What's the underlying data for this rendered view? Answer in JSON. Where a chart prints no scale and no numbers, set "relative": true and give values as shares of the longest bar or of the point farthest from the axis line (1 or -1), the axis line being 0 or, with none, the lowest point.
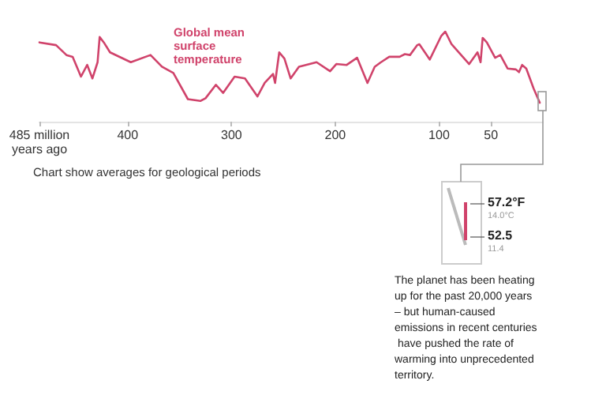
{
  "chart_data": {
    "type": "line",
    "relative": true,
    "x": [
      485,
      469,
      459,
      453,
      445,
      439,
      434,
      429,
      427,
      423,
      417,
      397,
      378,
      367,
      356,
      342,
      330,
      325,
      315,
      308,
      297,
      287,
      275,
      268,
      260,
      258,
      254,
      249,
      243,
      235,
      218,
      205,
      199,
      189,
      179,
      169,
      162,
      156,
      148,
      138,
      133,
      128,
      121,
      119,
      109,
      98,
      94,
      88,
      71,
      63,
      60,
      58,
      54,
      46,
      41,
      34,
      26,
      23,
      20,
      16,
      9,
      3
    ],
    "series": [
      {
        "name": "Global mean surface temperature",
        "color": "#d0436b",
        "values": [
          0.88,
          0.85,
          0.74,
          0.72,
          0.5,
          0.63,
          0.48,
          0.66,
          0.94,
          0.88,
          0.77,
          0.66,
          0.74,
          0.61,
          0.54,
          0.25,
          0.23,
          0.26,
          0.41,
          0.32,
          0.5,
          0.48,
          0.28,
          0.43,
          0.53,
          0.43,
          0.77,
          0.7,
          0.48,
          0.61,
          0.66,
          0.56,
          0.64,
          0.63,
          0.71,
          0.43,
          0.61,
          0.66,
          0.72,
          0.72,
          0.75,
          0.74,
          0.85,
          0.86,
          0.69,
          0.95,
          1.0,
          0.86,
          0.64,
          0.77,
          0.66,
          0.93,
          0.88,
          0.71,
          0.74,
          0.59,
          0.58,
          0.55,
          0.63,
          0.59,
          0.37,
          0.21
        ]
      }
    ],
    "xlim": [
      485,
      0
    ],
    "xticks": [
      {
        "value": 485,
        "label": "485 million years ago"
      },
      400,
      300,
      200,
      100,
      50
    ],
    "legend": false,
    "marker": "none",
    "line_style": "solid",
    "annotations": [
      "Chart show averages for geological periods",
      "57.2°F",
      "14.0°C",
      "52.5",
      "11.4",
      "The planet has been heating up for the past 20,000 years – but human-caused emissions in recent centuries have pushed the rate of warming into unprecedented territory."
    ]
  }
}
